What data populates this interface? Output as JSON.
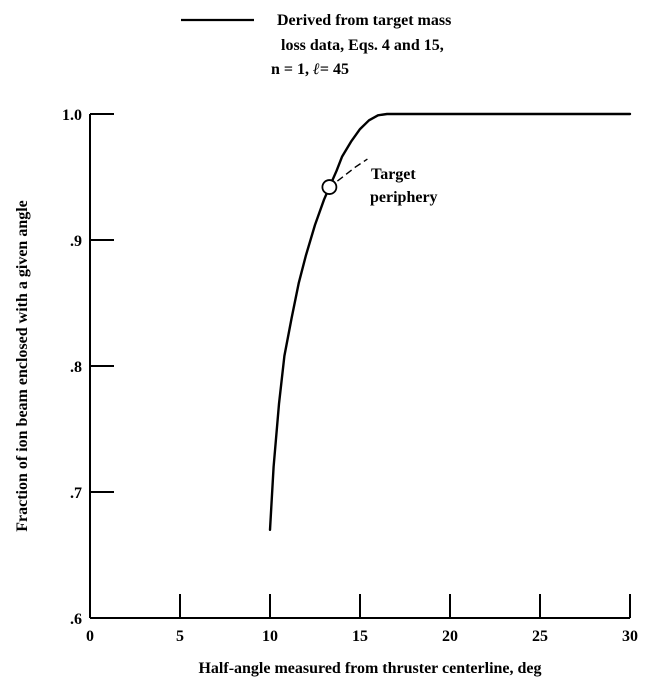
{
  "chart_data": {
    "type": "line",
    "title": "",
    "xlabel": "Half-angle measured from thruster centerline, deg",
    "ylabel": "Fraction of ion beam enclosed with a given angle",
    "xlim": [
      0,
      30
    ],
    "ylim": [
      0.6,
      1.0
    ],
    "x_ticks": [
      0,
      5,
      10,
      15,
      20,
      25,
      30
    ],
    "x_tick_labels": [
      "0",
      "5",
      "10",
      "15",
      "20",
      "25",
      "30"
    ],
    "y_ticks": [
      0.6,
      0.7,
      0.8,
      0.9,
      1.0
    ],
    "y_tick_labels": [
      ".6",
      ".7",
      ".8",
      ".9",
      "1.0"
    ],
    "grid": false,
    "legend": {
      "placement": "top",
      "line1": "Derived from target mass",
      "line2": "loss data, Eqs. 4 and 15,",
      "line3_prefix": "n = 1,  ",
      "line3_symbol": "ℓ",
      "line3_suffix": "= 45"
    },
    "series": [
      {
        "x": [
          10.0,
          10.2,
          10.5,
          10.8,
          11.2,
          11.6,
          12.0,
          12.5,
          13.0,
          13.3,
          13.7,
          14.0,
          14.5,
          15.0,
          15.5,
          16.0,
          16.5,
          17.0,
          20.0,
          25.0,
          30.0
        ],
        "y": [
          0.67,
          0.72,
          0.77,
          0.808,
          0.838,
          0.866,
          0.888,
          0.912,
          0.932,
          0.942,
          0.955,
          0.966,
          0.978,
          0.988,
          0.995,
          0.999,
          1.0,
          1.0,
          1.0,
          1.0,
          1.0
        ]
      }
    ],
    "annotations": [
      {
        "line1": "Target",
        "line2": "periphery",
        "x": 13.3,
        "y": 0.942
      }
    ]
  }
}
